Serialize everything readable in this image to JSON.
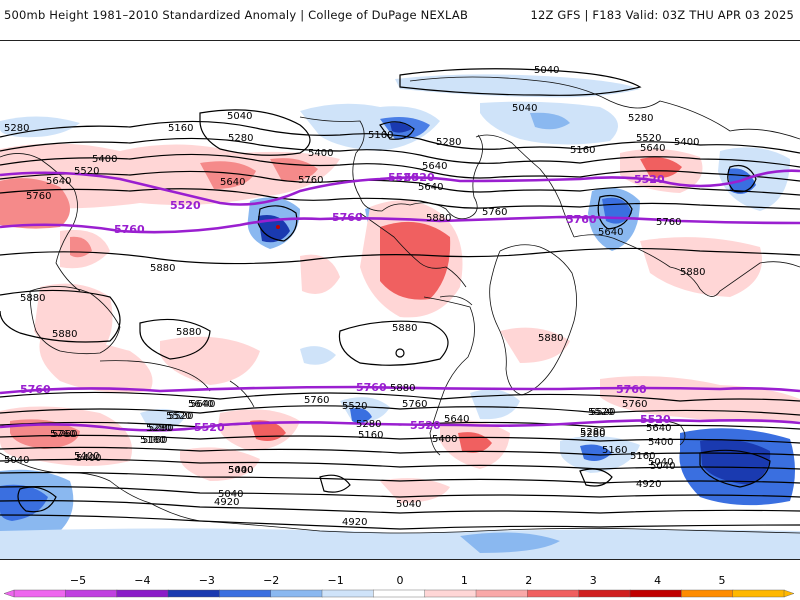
{
  "header": {
    "title": "500mb Height 1981–2010 Standardized Anomaly | College of DuPage NEXLAB",
    "run": "12Z GFS | F183 Valid: 03Z THU APR 03 2025"
  },
  "map": {
    "black_contour_labels": [
      {
        "id": "c1",
        "text": "5040"
      },
      {
        "id": "c2",
        "text": "5040"
      },
      {
        "id": "c3",
        "text": "5280"
      },
      {
        "id": "c4",
        "text": "5160"
      },
      {
        "id": "c5",
        "text": "5280"
      },
      {
        "id": "c6",
        "text": "5400"
      },
      {
        "id": "c7",
        "text": "5520"
      },
      {
        "id": "c8",
        "text": "5640"
      },
      {
        "id": "c9",
        "text": "5760"
      },
      {
        "id": "c10",
        "text": "5880"
      },
      {
        "id": "c11",
        "text": "5880"
      },
      {
        "id": "c12",
        "text": "5880"
      },
      {
        "id": "c13",
        "text": "5640"
      },
      {
        "id": "c14",
        "text": "5760"
      },
      {
        "id": "c15",
        "text": "5400"
      },
      {
        "id": "c16",
        "text": "5160"
      },
      {
        "id": "c17",
        "text": "5280"
      },
      {
        "id": "c18",
        "text": "5640"
      },
      {
        "id": "c19",
        "text": "5880"
      },
      {
        "id": "c20",
        "text": "5760"
      },
      {
        "id": "c21",
        "text": "5880"
      },
      {
        "id": "c22",
        "text": "5880"
      },
      {
        "id": "c23",
        "text": "5880"
      },
      {
        "id": "c24",
        "text": "5160"
      },
      {
        "id": "c25",
        "text": "5040"
      },
      {
        "id": "c26",
        "text": "5280"
      },
      {
        "id": "c27",
        "text": "5400"
      },
      {
        "id": "c28",
        "text": "5520"
      },
      {
        "id": "c29",
        "text": "5640"
      },
      {
        "id": "c30",
        "text": "5760"
      },
      {
        "id": "c31",
        "text": "5640"
      },
      {
        "id": "c32",
        "text": "5640"
      },
      {
        "id": "c33",
        "text": "5880"
      },
      {
        "id": "c34",
        "text": "5040"
      },
      {
        "id": "c35",
        "text": "5040"
      },
      {
        "id": "c36",
        "text": "5160"
      },
      {
        "id": "c37",
        "text": "5280"
      },
      {
        "id": "c38",
        "text": "5400"
      },
      {
        "id": "c39",
        "text": "5520"
      },
      {
        "id": "c40",
        "text": "5640"
      },
      {
        "id": "c41",
        "text": "5760"
      },
      {
        "id": "c42",
        "text": "5280"
      },
      {
        "id": "c43",
        "text": "5160"
      },
      {
        "id": "c44",
        "text": "5400"
      },
      {
        "id": "c45",
        "text": "5520"
      },
      {
        "id": "c46",
        "text": "5640"
      },
      {
        "id": "c47",
        "text": "5760"
      },
      {
        "id": "c48",
        "text": "5040"
      },
      {
        "id": "c49",
        "text": "4920"
      },
      {
        "id": "c50",
        "text": "5400"
      },
      {
        "id": "c51",
        "text": "5520"
      },
      {
        "id": "c52",
        "text": "5280"
      },
      {
        "id": "c53",
        "text": "5160"
      },
      {
        "id": "c54",
        "text": "5040"
      },
      {
        "id": "c55",
        "text": "4920"
      },
      {
        "id": "c56",
        "text": "5040"
      },
      {
        "id": "c57",
        "text": "4920"
      },
      {
        "id": "c58",
        "text": "5760"
      },
      {
        "id": "c59",
        "text": "5880"
      },
      {
        "id": "c60",
        "text": "5760"
      },
      {
        "id": "c61",
        "text": "5640"
      },
      {
        "id": "c62",
        "text": "5520"
      },
      {
        "id": "c63",
        "text": "5400"
      },
      {
        "id": "c64",
        "text": "5280"
      },
      {
        "id": "c65",
        "text": "5160"
      },
      {
        "id": "c66",
        "text": "5040"
      },
      {
        "id": "c67",
        "text": "5400"
      },
      {
        "id": "c68",
        "text": "5280"
      },
      {
        "id": "c69",
        "text": "5160"
      },
      {
        "id": "c70",
        "text": "5520"
      },
      {
        "id": "c71",
        "text": "5640"
      },
      {
        "id": "c72",
        "text": "5760"
      }
    ],
    "purple_contour_labels": [
      {
        "id": "p1",
        "text": "5520"
      },
      {
        "id": "p2",
        "text": "5760"
      },
      {
        "id": "p3",
        "text": "5760"
      },
      {
        "id": "p4",
        "text": "5520"
      },
      {
        "id": "p5",
        "text": "5760"
      },
      {
        "id": "p6",
        "text": "5520"
      },
      {
        "id": "p7",
        "text": "5760"
      },
      {
        "id": "p8",
        "text": "5520"
      },
      {
        "id": "p9",
        "text": "5760"
      },
      {
        "id": "p10",
        "text": "5520"
      },
      {
        "id": "p11",
        "text": "5760"
      },
      {
        "id": "p12",
        "text": "5520"
      },
      {
        "id": "p13",
        "text": "5520"
      }
    ]
  },
  "colorbar": {
    "ticks": [
      "−5",
      "−4",
      "−3",
      "−2",
      "−1",
      "0",
      "1",
      "2",
      "3",
      "4",
      "5"
    ],
    "colors": [
      "#ee66ee",
      "#8a1cc8",
      "#1a3ab0",
      "#3a6fe0",
      "#bcd8f8",
      "#ffffff",
      "#ffd0d0",
      "#f58a8a",
      "#e83a3a",
      "#c00000",
      "#ffa500"
    ],
    "segment_colors": [
      "#ee66ee",
      "#c040e0",
      "#8a1cc8",
      "#1a3ab0",
      "#3a6fe0",
      "#8ab8f0",
      "#cfe3f9",
      "#ffffff",
      "#ffd6d6",
      "#f9a8a8",
      "#f06060",
      "#d02020",
      "#c00000",
      "#ff8c00",
      "#ffb800"
    ]
  }
}
